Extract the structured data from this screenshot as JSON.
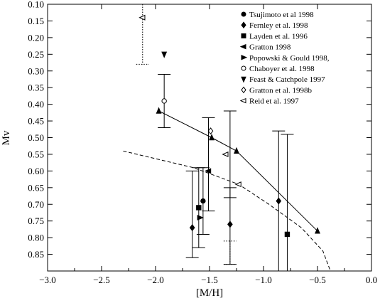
{
  "chart_data": {
    "type": "scatter",
    "title": "",
    "xlabel": "[M/H]",
    "ylabel": "Mv",
    "xlim": [
      -3.0,
      0.0
    ],
    "ylim": [
      0.1,
      0.9
    ],
    "y_inverted": true,
    "grid": false,
    "legend_position": "top-right",
    "x_ticks": [
      "−3.0",
      "−2.5",
      "−2.0",
      "−1.5",
      "−1.0",
      "−0.5",
      "0.0"
    ],
    "x_tick_values": [
      -3.0,
      -2.5,
      -2.0,
      -1.5,
      -1.0,
      -0.5,
      0.0
    ],
    "y_ticks": [
      "0.10",
      "0.15",
      "0.20",
      "0.25",
      "0.30",
      "0.35",
      "0.40",
      "0.45",
      "0.50",
      "0.55",
      "0.60",
      "0.65",
      "0.70",
      "0.75",
      "0.80",
      "0.85"
    ],
    "y_tick_values": [
      0.1,
      0.15,
      0.2,
      0.25,
      0.3,
      0.35,
      0.4,
      0.45,
      0.5,
      0.55,
      0.6,
      0.65,
      0.7,
      0.75,
      0.8,
      0.85
    ],
    "series": [
      {
        "name": "Tsujimoto et al 1998",
        "marker": "filled-circle",
        "points": [
          {
            "x": -1.56,
            "y": 0.69
          }
        ]
      },
      {
        "name": "Fernley et al. 1998",
        "marker": "filled-diamond",
        "points": [
          {
            "x": -1.66,
            "y": 0.77
          },
          {
            "x": -1.31,
            "y": 0.76
          },
          {
            "x": -0.86,
            "y": 0.69
          }
        ]
      },
      {
        "name": "Layden et al. 1996",
        "marker": "filled-square",
        "points": [
          {
            "x": -1.6,
            "y": 0.71
          },
          {
            "x": -0.78,
            "y": 0.79
          }
        ]
      },
      {
        "name": "Gratton 1998",
        "marker": "filled-triangle-left",
        "points": [
          {
            "x": -1.51,
            "y": 0.6
          }
        ]
      },
      {
        "name": "Popowski & Gould 1998,",
        "marker": "filled-triangle-right",
        "points": [
          {
            "x": -1.59,
            "y": 0.74
          }
        ]
      },
      {
        "name": "Chaboyer et al. 1998",
        "marker": "open-circle",
        "points": [
          {
            "x": -1.92,
            "y": 0.39
          }
        ]
      },
      {
        "name": "Feast & Catchpole 1997",
        "marker": "filled-triangle-down",
        "points": [
          {
            "x": -1.92,
            "y": 0.25
          }
        ]
      },
      {
        "name": "Gratton et al. 1998b",
        "marker": "open-diamond",
        "points": [
          {
            "x": -1.49,
            "y": 0.48
          }
        ]
      },
      {
        "name": "Reid et al. 1997",
        "marker": "open-triangle-left",
        "points": [
          {
            "x": -2.12,
            "y": 0.14
          },
          {
            "x": -1.35,
            "y": 0.55
          },
          {
            "x": -1.23,
            "y": 0.64
          }
        ]
      },
      {
        "name": "",
        "marker": "filled-triangle-up",
        "points": [
          {
            "x": -1.97,
            "y": 0.42
          },
          {
            "x": -1.48,
            "y": 0.5
          },
          {
            "x": -1.25,
            "y": 0.54
          },
          {
            "x": -0.5,
            "y": 0.78
          }
        ]
      }
    ],
    "lines": [
      {
        "style": "solid",
        "points": [
          {
            "x": -1.97,
            "y": 0.42
          },
          {
            "x": -1.48,
            "y": 0.5
          },
          {
            "x": -1.25,
            "y": 0.54
          },
          {
            "x": -0.5,
            "y": 0.78
          }
        ]
      },
      {
        "style": "dashed",
        "points": [
          {
            "x": -2.3,
            "y": 0.54
          },
          {
            "x": -1.65,
            "y": 0.59
          },
          {
            "x": -1.23,
            "y": 0.64
          },
          {
            "x": -0.95,
            "y": 0.7
          },
          {
            "x": -0.65,
            "y": 0.77
          },
          {
            "x": -0.45,
            "y": 0.84
          },
          {
            "x": -0.38,
            "y": 0.9
          }
        ]
      }
    ],
    "error_bars": [
      {
        "style": "solid",
        "x": -1.92,
        "ymin": 0.31,
        "ymax": 0.47
      },
      {
        "style": "solid",
        "x": -1.66,
        "ymin": 0.6,
        "ymax": 0.86
      },
      {
        "style": "solid",
        "x": -1.6,
        "ymin": 0.59,
        "ymax": 0.83
      },
      {
        "style": "solid",
        "x": -1.56,
        "ymin": 0.59,
        "ymax": 0.79
      },
      {
        "style": "solid",
        "x": -1.51,
        "ymin": 0.44,
        "ymax": 0.72
      },
      {
        "style": "solid",
        "x": -1.31,
        "ymin": 0.42,
        "ymax": 0.68
      },
      {
        "style": "solid",
        "x": -1.31,
        "ymin": 0.65,
        "ymax": 0.88
      },
      {
        "style": "solid",
        "x": -0.86,
        "ymin": 0.48,
        "ymax": 0.9
      },
      {
        "style": "solid",
        "x": -0.78,
        "ymin": 0.49,
        "ymax": 0.9
      },
      {
        "style": "dotted",
        "x": -2.12,
        "ymin": 0.1,
        "ymax": 0.28
      },
      {
        "style": "dotted",
        "x": -1.31,
        "ymin": 0.81,
        "ymax": 0.88
      }
    ]
  }
}
